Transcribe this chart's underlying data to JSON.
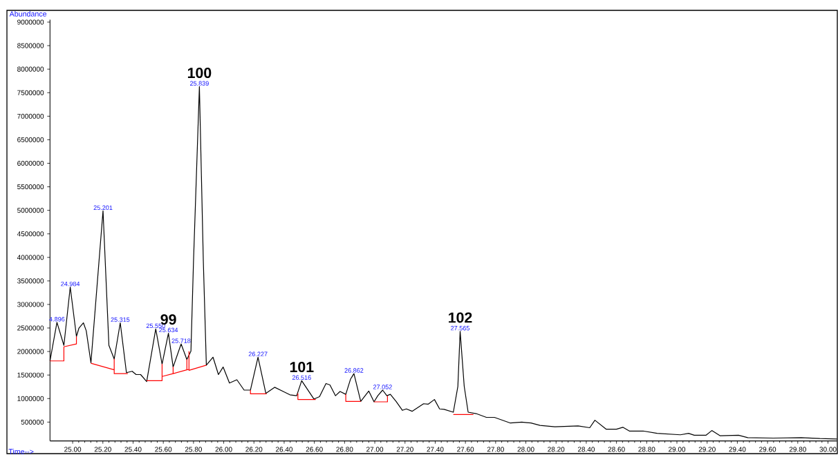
{
  "chart_data": {
    "type": "line",
    "xlabel": "Time-->",
    "ylabel": "Abundance",
    "xlim": [
      24.85,
      30.06
    ],
    "ylim": [
      100000,
      9050000
    ],
    "xticks": [
      {
        "value": 25.0,
        "label": "25.00"
      },
      {
        "value": 25.2,
        "label": "25.20"
      },
      {
        "value": 25.4,
        "label": "25.40"
      },
      {
        "value": 25.6,
        "label": "25.60"
      },
      {
        "value": 25.8,
        "label": "25.80"
      },
      {
        "value": 26.0,
        "label": "26.00"
      },
      {
        "value": 26.2,
        "label": "26.20"
      },
      {
        "value": 26.4,
        "label": "26.40"
      },
      {
        "value": 26.6,
        "label": "26.60"
      },
      {
        "value": 26.8,
        "label": "26.80"
      },
      {
        "value": 27.0,
        "label": "27.00"
      },
      {
        "value": 27.2,
        "label": "27.20"
      },
      {
        "value": 27.4,
        "label": "27.40"
      },
      {
        "value": 27.6,
        "label": "27.60"
      },
      {
        "value": 27.8,
        "label": "27.80"
      },
      {
        "value": 28.0,
        "label": "28.00"
      },
      {
        "value": 28.2,
        "label": "28.20"
      },
      {
        "value": 28.4,
        "label": "28.40"
      },
      {
        "value": 28.6,
        "label": "28.60"
      },
      {
        "value": 28.8,
        "label": "28.80"
      },
      {
        "value": 29.0,
        "label": "29.00"
      },
      {
        "value": 29.2,
        "label": "29.20"
      },
      {
        "value": 29.4,
        "label": "29.40"
      },
      {
        "value": 29.6,
        "label": "29.60"
      },
      {
        "value": 29.8,
        "label": "29.80"
      },
      {
        "value": 30.0,
        "label": "30.00"
      }
    ],
    "yticks": [
      500000,
      1000000,
      1500000,
      2000000,
      2500000,
      3000000,
      3500000,
      4000000,
      4500000,
      5000000,
      5500000,
      6000000,
      6500000,
      7000000,
      7500000,
      8000000,
      8500000,
      9000000
    ],
    "annotations": [
      {
        "text": "4.896",
        "x": 24.896,
        "y": 2620000
      },
      {
        "text": "24.984",
        "x": 24.984,
        "y": 3370000
      },
      {
        "text": "25.201",
        "x": 25.201,
        "y": 4990000
      },
      {
        "text": "25.315",
        "x": 25.315,
        "y": 2610000
      },
      {
        "text": "25.550",
        "x": 25.55,
        "y": 2480000
      },
      {
        "text": "25.634",
        "x": 25.634,
        "y": 2390000
      },
      {
        "text": "25.718",
        "x": 25.718,
        "y": 2160000
      },
      {
        "text": "25.839",
        "x": 25.839,
        "y": 7630000
      },
      {
        "text": "26.227",
        "x": 26.227,
        "y": 1880000
      },
      {
        "text": "26.516",
        "x": 26.516,
        "y": 1380000
      },
      {
        "text": "26.862",
        "x": 26.862,
        "y": 1530000
      },
      {
        "text": "27.052",
        "x": 27.052,
        "y": 1180000
      },
      {
        "text": "27.565",
        "x": 27.565,
        "y": 2430000
      },
      {
        "text": "99",
        "x": 25.634,
        "y": 2390000
      },
      {
        "text": "100",
        "x": 25.839,
        "y": 7630000
      },
      {
        "text": "101",
        "x": 26.516,
        "y": 1380000
      },
      {
        "text": "102",
        "x": 27.565,
        "y": 2430000
      }
    ],
    "series": [
      {
        "color": "#000000",
        "x": [
          24.85,
          24.896,
          24.942,
          24.984,
          25.025,
          25.042,
          25.071,
          25.09,
          25.121,
          25.201,
          25.24,
          25.275,
          25.315,
          25.356,
          25.394,
          25.42,
          25.45,
          25.49,
          25.55,
          25.592,
          25.634,
          25.665,
          25.718,
          25.756,
          25.783,
          25.8,
          25.839,
          25.865,
          25.885,
          25.929,
          25.965,
          25.996,
          26.038,
          26.087,
          26.135,
          26.177,
          26.227,
          26.279,
          26.337,
          26.394,
          26.438,
          26.483,
          26.516,
          26.597,
          26.634,
          26.677,
          26.703,
          26.74,
          26.77,
          26.808,
          26.839,
          26.862,
          26.907,
          26.96,
          26.995,
          27.02,
          27.052,
          27.08,
          27.103,
          27.141,
          27.183,
          27.209,
          27.247,
          27.323,
          27.353,
          27.395,
          27.429,
          27.459,
          27.52,
          27.55,
          27.565,
          27.592,
          27.618,
          27.671,
          27.739,
          27.792,
          27.898,
          27.973,
          28.034,
          28.094,
          28.192,
          28.346,
          28.423,
          28.457,
          28.531,
          28.6,
          28.642,
          28.685,
          28.777,
          28.869,
          29.023,
          29.077,
          29.115,
          29.192,
          29.231,
          29.285,
          29.408,
          29.469,
          29.638,
          29.823,
          29.946,
          30.06
        ],
        "values": [
          1800000,
          2620000,
          2130000,
          3370000,
          2320000,
          2500000,
          2610000,
          2440000,
          1760000,
          4990000,
          2130000,
          1840000,
          2610000,
          1550000,
          1580000,
          1510000,
          1510000,
          1360000,
          2480000,
          1730000,
          2390000,
          1670000,
          2160000,
          1830000,
          2010000,
          3920000,
          7630000,
          3920000,
          1710000,
          1880000,
          1510000,
          1670000,
          1330000,
          1400000,
          1180000,
          1180000,
          1880000,
          1110000,
          1240000,
          1150000,
          1080000,
          1060000,
          1380000,
          990000,
          1040000,
          1320000,
          1290000,
          1060000,
          1150000,
          1090000,
          1410000,
          1530000,
          940000,
          1160000,
          930000,
          1060000,
          1180000,
          1060000,
          1090000,
          940000,
          750000,
          780000,
          730000,
          890000,
          880000,
          980000,
          780000,
          770000,
          710000,
          1260000,
          2430000,
          1260000,
          710000,
          680000,
          600000,
          600000,
          480000,
          500000,
          480000,
          430000,
          400000,
          420000,
          380000,
          540000,
          350000,
          350000,
          390000,
          310000,
          310000,
          260000,
          230000,
          260000,
          220000,
          220000,
          320000,
          210000,
          220000,
          170000,
          160000,
          170000,
          150000,
          140000
        ]
      },
      {
        "color": "#ff0000",
        "x": [
          24.85,
          24.942,
          24.942,
          25.025,
          25.025,
          null,
          25.121,
          25.275,
          25.275,
          25.275,
          25.365,
          null,
          25.49,
          25.592,
          25.592,
          25.592,
          25.665,
          25.665,
          25.665,
          25.756,
          25.756,
          25.756,
          25.77,
          25.77,
          25.77,
          25.885,
          null,
          26.177,
          26.177,
          26.284,
          null,
          26.491,
          26.491,
          26.609,
          null,
          26.808,
          26.808,
          26.907,
          null,
          26.995,
          27.084,
          27.084,
          null,
          27.52,
          27.653
        ],
        "values": [
          1800000,
          1800000,
          2100000,
          2160000,
          2320000,
          null,
          1750000,
          1610000,
          1840000,
          1530000,
          1530000,
          null,
          1380000,
          1380000,
          1730000,
          1470000,
          1530000,
          1670000,
          1530000,
          1610000,
          1830000,
          1610000,
          1620000,
          2000000,
          1600000,
          1710000,
          null,
          1180000,
          1100000,
          1100000,
          null,
          1110000,
          980000,
          980000,
          null,
          1090000,
          940000,
          940000,
          null,
          930000,
          930000,
          1060000,
          null,
          660000,
          660000
        ]
      }
    ]
  }
}
